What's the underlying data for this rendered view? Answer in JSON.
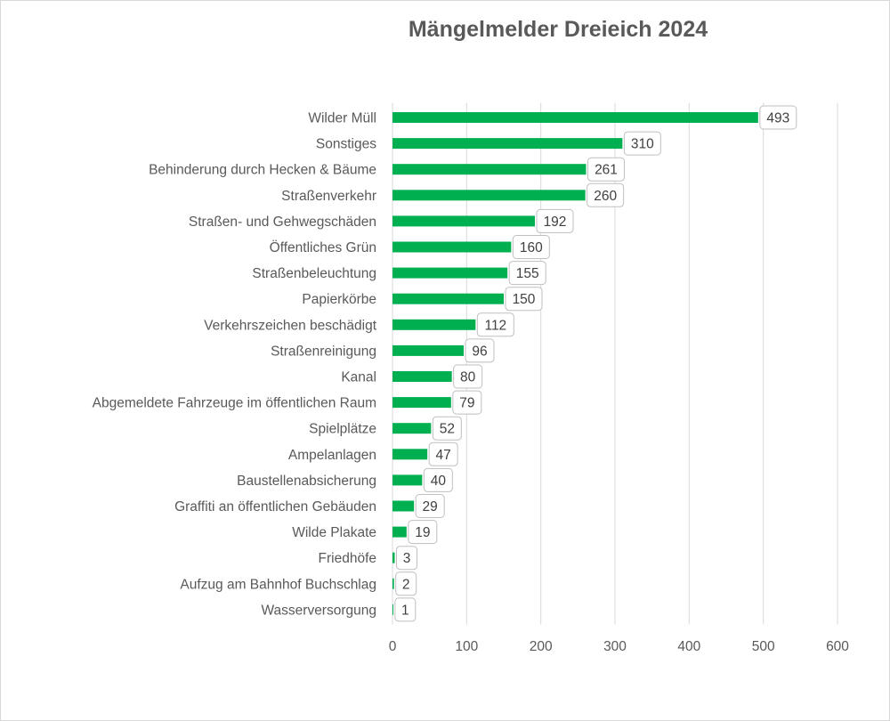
{
  "chart_data": {
    "type": "bar",
    "orientation": "horizontal",
    "title": "Mängelmelder Dreieich 2024",
    "categories": [
      "Wilder Müll",
      "Sonstiges",
      "Behinderung durch Hecken & Bäume",
      "Straßenverkehr",
      "Straßen- und Gehwegschäden",
      "Öffentliches Grün",
      "Straßenbeleuchtung",
      "Papierkörbe",
      "Verkehrszeichen beschädigt",
      "Straßenreinigung",
      "Kanal",
      "Abgemeldete Fahrzeuge im öffentlichen Raum",
      "Spielplätze",
      "Ampelanlagen",
      "Baustellenabsicherung",
      "Graffiti an öffentlichen Gebäuden",
      "Wilde Plakate",
      "Friedhöfe",
      "Aufzug am Bahnhof Buchschlag",
      "Wasserversorgung"
    ],
    "values": [
      493,
      310,
      261,
      260,
      192,
      160,
      155,
      150,
      112,
      96,
      80,
      79,
      52,
      47,
      40,
      29,
      19,
      3,
      2,
      1
    ],
    "xlim": [
      0,
      600
    ],
    "xticks": [
      0,
      100,
      200,
      300,
      400,
      500,
      600
    ],
    "xlabel": "",
    "ylabel": "",
    "grid": "vertical",
    "legend": "none",
    "data_labels": true,
    "bar_color": "#00b050",
    "gridline_color": "#d9d9d9",
    "text_color": "#595959"
  }
}
